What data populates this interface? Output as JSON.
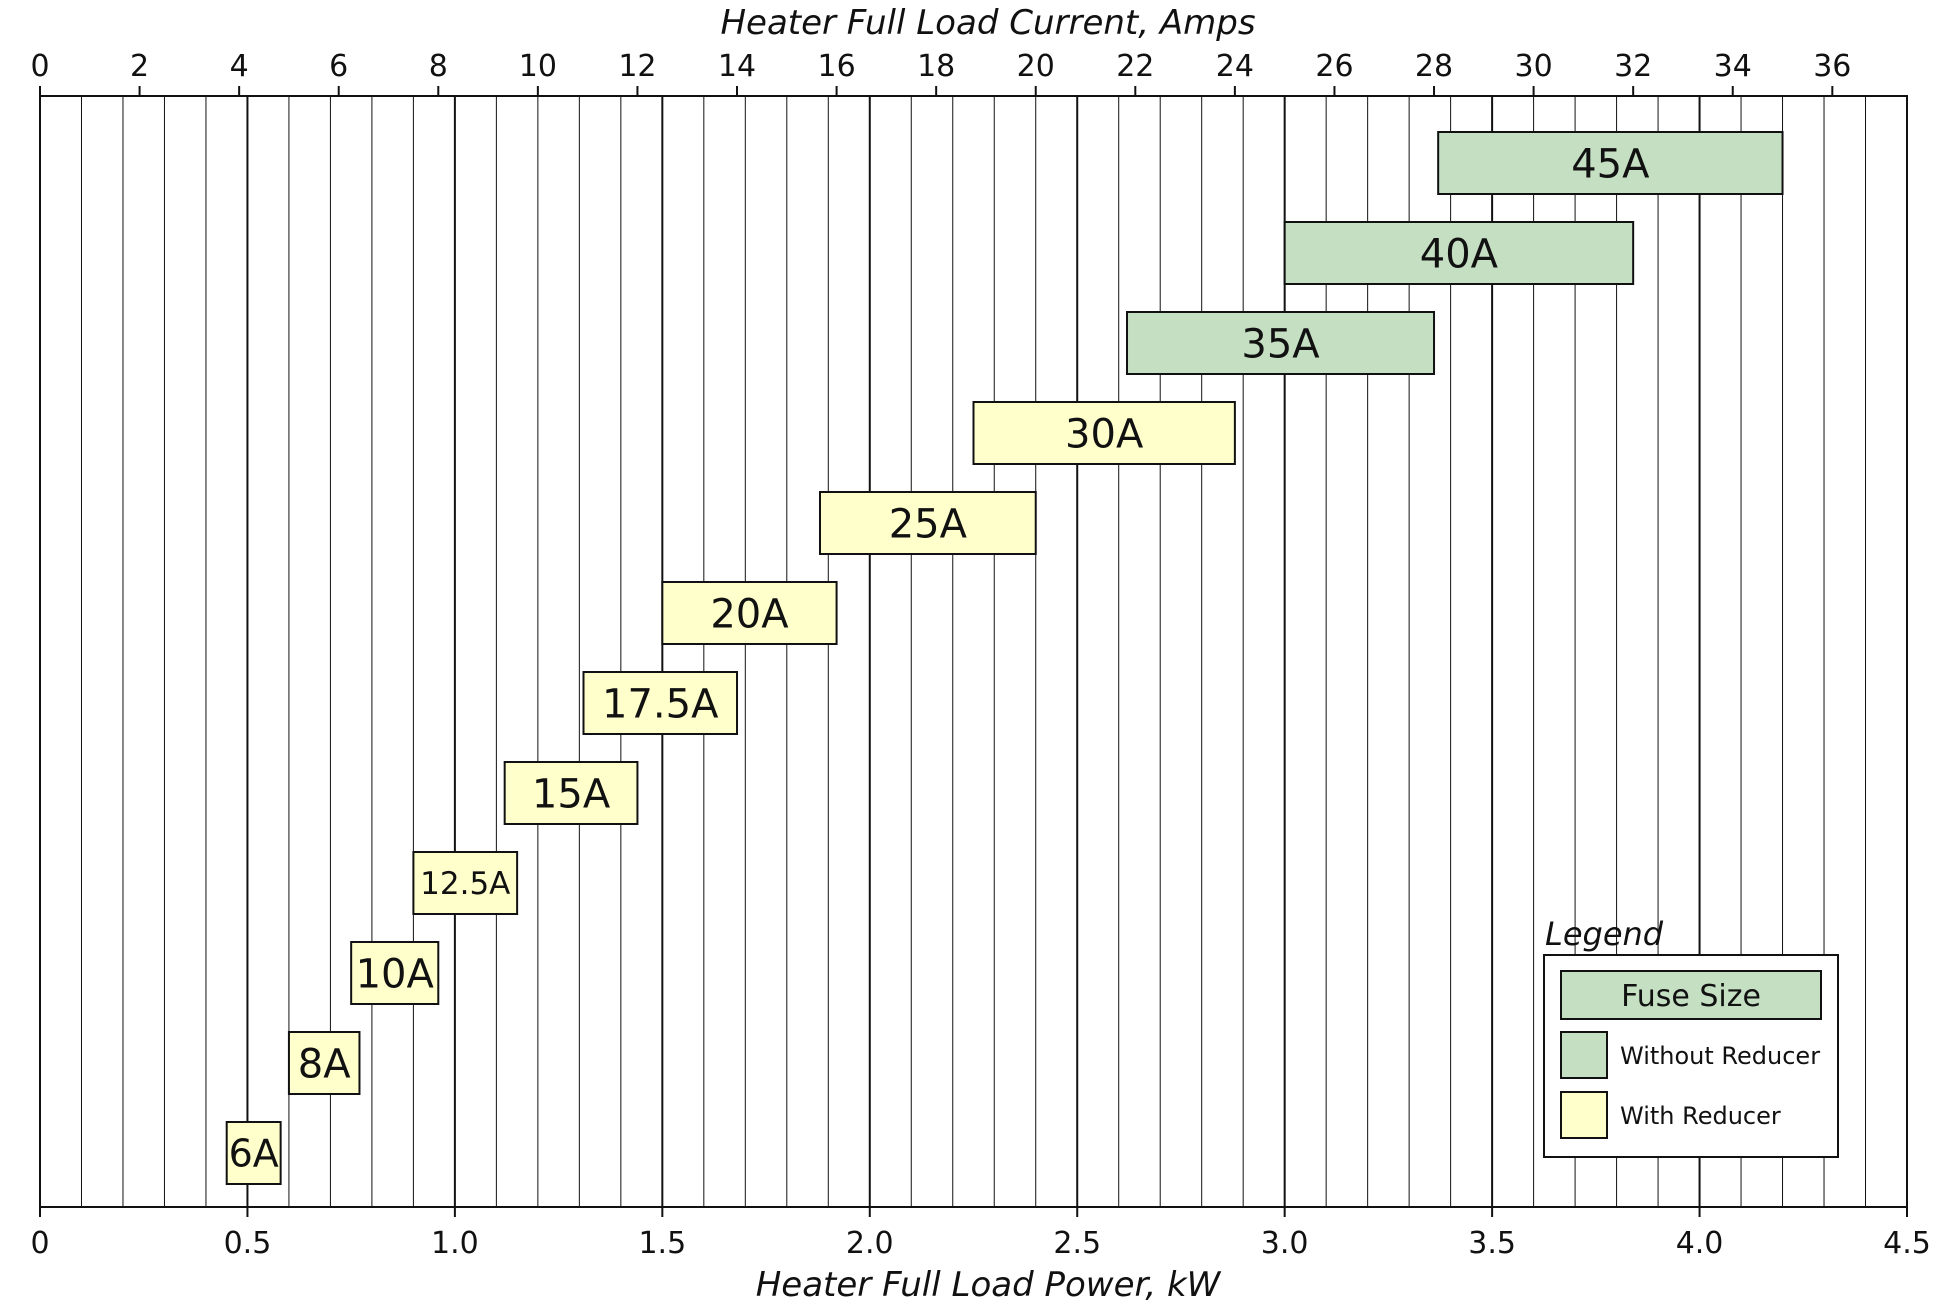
{
  "chart_data": {
    "type": "bar",
    "orientation": "horizontal-range",
    "xlabel_top": "Heater Full Load Current, Amps",
    "xlabel_bottom": "Heater Full Load Power, kW",
    "x_top_range": [
      0,
      37.5
    ],
    "x_top_ticks": [
      "0",
      "2",
      "4",
      "6",
      "8",
      "10",
      "12",
      "14",
      "16",
      "18",
      "20",
      "22",
      "24",
      "26",
      "28",
      "30",
      "32",
      "34",
      "36"
    ],
    "x_bottom_range": [
      0,
      4.5
    ],
    "x_bottom_ticks": [
      "0",
      "0.5",
      "1.0",
      "1.5",
      "2.0",
      "2.5",
      "3.0",
      "3.5",
      "4.0",
      "4.5"
    ],
    "grid": true,
    "legend_placement": "bottom-right",
    "series": [
      {
        "name": "45A",
        "group": "Without Reducer",
        "start_kw": 3.37,
        "end_kw": 4.2
      },
      {
        "name": "40A",
        "group": "Without Reducer",
        "start_kw": 3.0,
        "end_kw": 3.84
      },
      {
        "name": "35A",
        "group": "Without Reducer",
        "start_kw": 2.62,
        "end_kw": 3.36
      },
      {
        "name": "30A",
        "group": "With Reducer",
        "start_kw": 2.25,
        "end_kw": 2.88
      },
      {
        "name": "25A",
        "group": "With Reducer",
        "start_kw": 1.88,
        "end_kw": 2.4
      },
      {
        "name": "20A",
        "group": "With Reducer",
        "start_kw": 1.5,
        "end_kw": 1.92
      },
      {
        "name": "17.5A",
        "group": "With Reducer",
        "start_kw": 1.31,
        "end_kw": 1.68
      },
      {
        "name": "15A",
        "group": "With Reducer",
        "start_kw": 1.12,
        "end_kw": 1.44
      },
      {
        "name": "12.5A",
        "group": "With Reducer",
        "start_kw": 0.9,
        "end_kw": 1.15
      },
      {
        "name": "10A",
        "group": "With Reducer",
        "start_kw": 0.75,
        "end_kw": 0.96
      },
      {
        "name": "8A",
        "group": "With Reducer",
        "start_kw": 0.6,
        "end_kw": 0.77
      },
      {
        "name": "6A",
        "group": "With Reducer",
        "start_kw": 0.45,
        "end_kw": 0.58
      }
    ]
  },
  "legend": {
    "title": "Legend",
    "header": "Fuse Size",
    "items": [
      {
        "label": "Without Reducer",
        "color": "#c5dfc3"
      },
      {
        "label": "With Reducer",
        "color": "#ffffcc"
      }
    ]
  },
  "colors": {
    "without_reducer": "#c5dfc3",
    "with_reducer": "#ffffcc",
    "border": "#111111"
  }
}
